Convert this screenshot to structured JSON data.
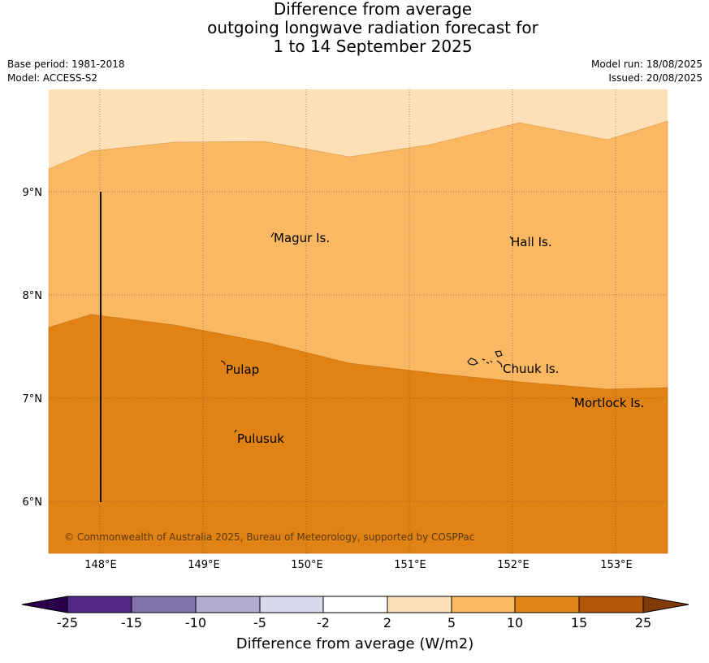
{
  "title": {
    "line1": "Difference from average",
    "line2": "outgoing longwave radiation forecast for",
    "line3": "1 to 14 September 2025"
  },
  "meta": {
    "base_period": "Base period: 1981-2018",
    "model": "Model: ACCESS-S2",
    "model_run": "Model run: 18/08/2025",
    "issued": "Issued: 20/08/2025"
  },
  "map": {
    "lat_labels": [
      "9°N",
      "8°N",
      "7°N",
      "6°N"
    ],
    "lon_labels": [
      "148°E",
      "149°E",
      "150°E",
      "151°E",
      "152°E",
      "153°E"
    ],
    "places": [
      "Magur Is.",
      "Hall Is.",
      "Pulap",
      "Chuuk Is.",
      "Mortlock Is.",
      "Pulusuk"
    ],
    "copyright": "© Commonwealth of Australia 2025, Bureau of Meteorology, supported by COSPPac",
    "zone_colors": {
      "top": "#fde0b6",
      "mid": "#fbb862",
      "bottom": "#e08214"
    }
  },
  "colorbar": {
    "title": "Difference from average (W/m2)",
    "tick_labels": [
      "-25",
      "-15",
      "-10",
      "-5",
      "-2",
      "2",
      "5",
      "10",
      "15",
      "25"
    ],
    "colors": [
      "#2d004b",
      "#542788",
      "#8073ac",
      "#b2abd2",
      "#d8daeb",
      "#ffffff",
      "#fee0b6",
      "#fdb863",
      "#e08214",
      "#b35806",
      "#7f3b08"
    ]
  }
}
